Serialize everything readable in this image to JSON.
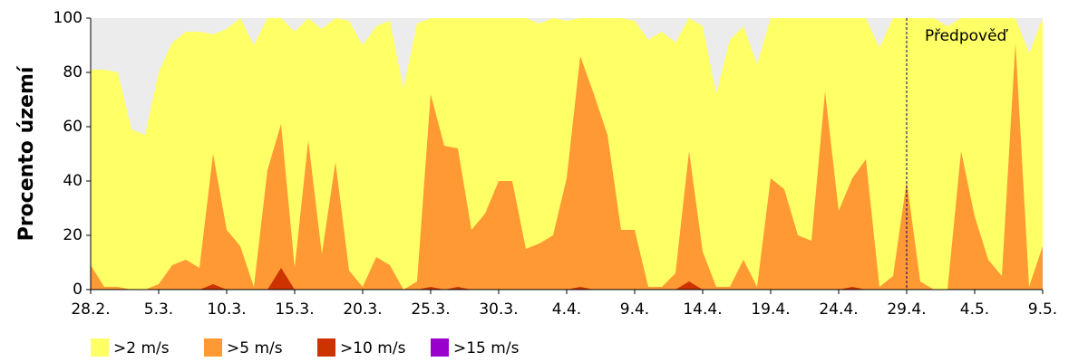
{
  "chart_data": {
    "type": "area",
    "y_label": "Procento území",
    "categories": [
      "28.2.",
      null,
      null,
      null,
      null,
      "5.3.",
      null,
      null,
      null,
      null,
      "10.3.",
      null,
      null,
      null,
      null,
      "15.3.",
      null,
      null,
      null,
      null,
      "20.3.",
      null,
      null,
      null,
      null,
      "25.3.",
      null,
      null,
      null,
      null,
      "30.3.",
      null,
      null,
      null,
      null,
      "4.4.",
      null,
      null,
      null,
      null,
      "9.4.",
      null,
      null,
      null,
      null,
      "14.4.",
      null,
      null,
      null,
      null,
      "19.4.",
      null,
      null,
      null,
      null,
      "24.4.",
      null,
      null,
      null,
      null,
      "29.4.",
      null,
      null,
      null,
      null,
      "4.5.",
      null,
      null,
      null,
      null,
      "9.5."
    ],
    "series": [
      {
        "name": ">2 m/s",
        "color": "#ffff66",
        "values": [
          81,
          81,
          80,
          59,
          57,
          80,
          91,
          95,
          95,
          94,
          96,
          100,
          90,
          100,
          100,
          95,
          100,
          96,
          100,
          99,
          90,
          97,
          99,
          74,
          98,
          100,
          100,
          100,
          100,
          100,
          100,
          100,
          100,
          98,
          100,
          99,
          100,
          100,
          100,
          100,
          99,
          92,
          95,
          91,
          100,
          97,
          72,
          92,
          97,
          83,
          100,
          100,
          100,
          100,
          100,
          100,
          100,
          100,
          89,
          100,
          100,
          100,
          100,
          97,
          100,
          100,
          100,
          100,
          100,
          87,
          100
        ]
      },
      {
        "name": ">5 m/s",
        "color": "#ff9933",
        "values": [
          9,
          1,
          1,
          0,
          0,
          2,
          9,
          11,
          8,
          50,
          22,
          16,
          1,
          44,
          61,
          8,
          55,
          13,
          47,
          7,
          1,
          12,
          9,
          0,
          3,
          72,
          53,
          52,
          22,
          28,
          40,
          40,
          15,
          17,
          20,
          41,
          86,
          72,
          57,
          22,
          22,
          1,
          1,
          6,
          51,
          14,
          1,
          1,
          11,
          1,
          41,
          37,
          20,
          18,
          73,
          29,
          41,
          48,
          1,
          5,
          40,
          3,
          0,
          0,
          51,
          27,
          11,
          5,
          91,
          1,
          16
        ]
      },
      {
        "name": ">10 m/s",
        "color": "#cc3300",
        "values": [
          0,
          0,
          0,
          0,
          0,
          0,
          0,
          0,
          0,
          2,
          0,
          0,
          0,
          0,
          8,
          0,
          0,
          0,
          0,
          0,
          0,
          0,
          0,
          0,
          0,
          1,
          0,
          1,
          0,
          0,
          0,
          0,
          0,
          0,
          0,
          0,
          1,
          0,
          0,
          0,
          0,
          0,
          0,
          0,
          3,
          0,
          0,
          0,
          0,
          0,
          0,
          0,
          0,
          0,
          0,
          0,
          1,
          0,
          0,
          0,
          0,
          0,
          0,
          0,
          0,
          0,
          0,
          0,
          0,
          0,
          0
        ]
      },
      {
        "name": ">15 m/s",
        "color": "#9900cc",
        "values": [
          0,
          0,
          0,
          0,
          0,
          0,
          0,
          0,
          0,
          0,
          0,
          0,
          0,
          0,
          0,
          0,
          0,
          0,
          0,
          0,
          0,
          0,
          0,
          0,
          0,
          0,
          0,
          0,
          0,
          0,
          0,
          0,
          0,
          0,
          0,
          0,
          0,
          0,
          0,
          0,
          0,
          0,
          0,
          0,
          0,
          0,
          0,
          0,
          0,
          0,
          0,
          0,
          0,
          0,
          0,
          0,
          0,
          0,
          0,
          0,
          0,
          0,
          0,
          0,
          0,
          0,
          0,
          0,
          0,
          0,
          0
        ]
      }
    ],
    "ylim": [
      0,
      100
    ],
    "yticks": [
      0,
      20,
      40,
      60,
      80,
      100
    ],
    "annotation": {
      "text": "Předpověď",
      "x": "29.4."
    },
    "background": "#ececec"
  }
}
